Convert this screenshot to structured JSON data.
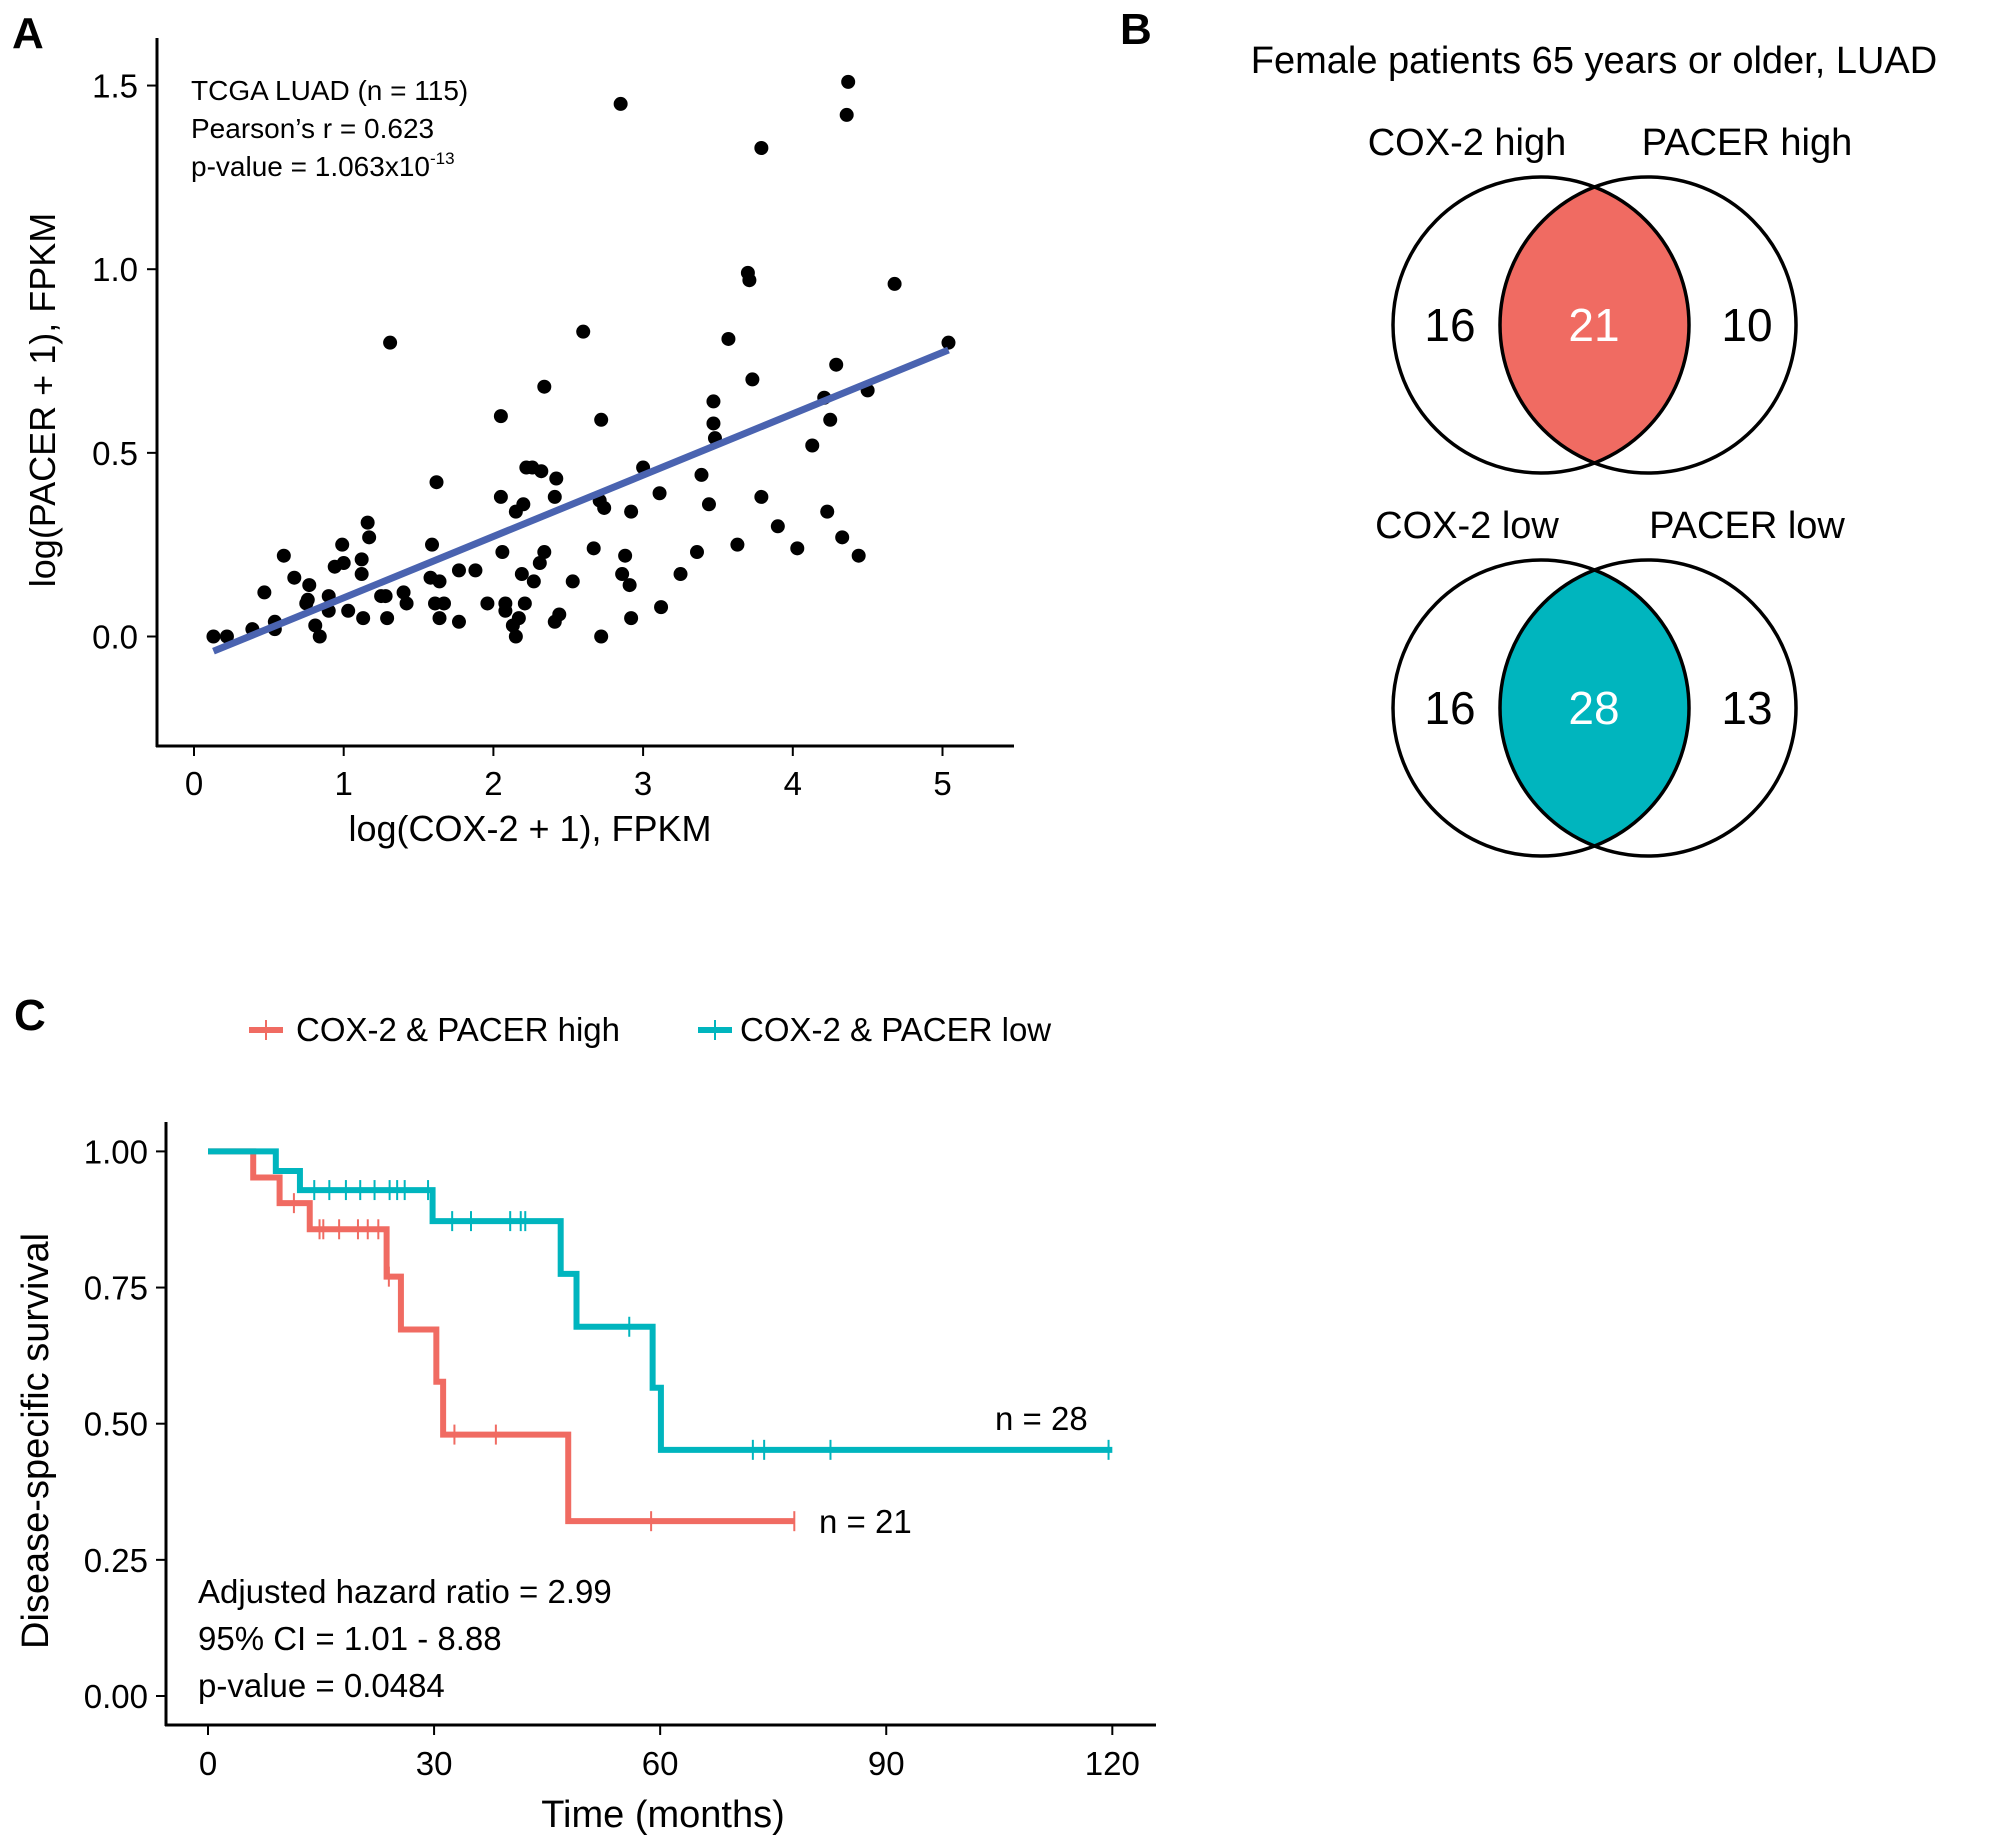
{
  "colors": {
    "point": "#000000",
    "fit_line": "#4a63b0",
    "high": "#f06b62",
    "low": "#00b5be",
    "axis": "#000000"
  },
  "chart_data": [
    {
      "panel": "A",
      "type": "scatter",
      "xlabel": "log(COX-2 + 1), FPKM",
      "ylabel": "log(PACER + 1), FPKM",
      "xlim": [
        -0.25,
        5.47
      ],
      "ylim": [
        -0.3,
        1.62
      ],
      "xticks": [
        "0",
        "1",
        "2",
        "3",
        "4",
        "5"
      ],
      "yticks": [
        "0.0",
        "0.5",
        "1.0",
        "1.5"
      ],
      "grid": false,
      "annotations": [
        "TCGA LUAD (n = 115)",
        "Pearson’s r = 0.623",
        "p-value = 1.063x10"
      ],
      "annotation_exponent": "-13",
      "fit_line": {
        "x": [
          0.13,
          5.04
        ],
        "y": [
          -0.04,
          0.78
        ]
      },
      "points": [
        [
          0.13,
          0.0
        ],
        [
          0.22,
          0.0
        ],
        [
          0.39,
          0.02
        ],
        [
          0.47,
          0.12
        ],
        [
          0.54,
          0.04
        ],
        [
          0.54,
          0.02
        ],
        [
          0.6,
          0.22
        ],
        [
          0.67,
          0.16
        ],
        [
          0.75,
          0.09
        ],
        [
          0.77,
          0.14
        ],
        [
          0.76,
          0.1
        ],
        [
          0.81,
          0.03
        ],
        [
          0.84,
          0.0
        ],
        [
          0.9,
          0.11
        ],
        [
          0.9,
          0.07
        ],
        [
          0.94,
          0.19
        ],
        [
          0.99,
          0.25
        ],
        [
          1.0,
          0.2
        ],
        [
          1.03,
          0.07
        ],
        [
          1.12,
          0.21
        ],
        [
          1.12,
          0.17
        ],
        [
          1.13,
          0.05
        ],
        [
          1.16,
          0.31
        ],
        [
          1.17,
          0.27
        ],
        [
          1.25,
          0.11
        ],
        [
          1.28,
          0.11
        ],
        [
          1.29,
          0.05
        ],
        [
          1.31,
          0.8
        ],
        [
          1.4,
          0.12
        ],
        [
          1.42,
          0.09
        ],
        [
          1.58,
          0.16
        ],
        [
          1.59,
          0.25
        ],
        [
          1.62,
          0.42
        ],
        [
          1.61,
          0.09
        ],
        [
          1.64,
          0.05
        ],
        [
          1.64,
          0.15
        ],
        [
          1.67,
          0.09
        ],
        [
          1.77,
          0.18
        ],
        [
          1.77,
          0.04
        ],
        [
          1.88,
          0.18
        ],
        [
          1.96,
          0.09
        ],
        [
          2.05,
          0.6
        ],
        [
          2.05,
          0.38
        ],
        [
          2.06,
          0.23
        ],
        [
          2.08,
          0.09
        ],
        [
          2.08,
          0.07
        ],
        [
          2.13,
          0.03
        ],
        [
          2.15,
          0.0
        ],
        [
          2.15,
          0.34
        ],
        [
          2.17,
          0.05
        ],
        [
          2.19,
          0.17
        ],
        [
          2.2,
          0.36
        ],
        [
          2.21,
          0.09
        ],
        [
          2.22,
          0.46
        ],
        [
          2.26,
          0.46
        ],
        [
          2.27,
          0.15
        ],
        [
          2.31,
          0.2
        ],
        [
          2.32,
          0.45
        ],
        [
          2.34,
          0.23
        ],
        [
          2.34,
          0.68
        ],
        [
          2.41,
          0.04
        ],
        [
          2.41,
          0.38
        ],
        [
          2.42,
          0.43
        ],
        [
          2.44,
          0.06
        ],
        [
          2.53,
          0.15
        ],
        [
          2.6,
          0.83
        ],
        [
          2.67,
          0.24
        ],
        [
          2.71,
          0.37
        ],
        [
          2.72,
          0.0
        ],
        [
          2.72,
          0.59
        ],
        [
          2.74,
          0.35
        ],
        [
          2.85,
          1.45
        ],
        [
          2.86,
          0.17
        ],
        [
          2.88,
          0.22
        ],
        [
          2.91,
          0.14
        ],
        [
          2.92,
          0.05
        ],
        [
          2.92,
          0.34
        ],
        [
          3.0,
          0.46
        ],
        [
          3.11,
          0.39
        ],
        [
          3.12,
          0.08
        ],
        [
          3.25,
          0.17
        ],
        [
          3.36,
          0.23
        ],
        [
          3.39,
          0.44
        ],
        [
          3.44,
          0.36
        ],
        [
          3.47,
          0.64
        ],
        [
          3.47,
          0.58
        ],
        [
          3.48,
          0.54
        ],
        [
          3.57,
          0.81
        ],
        [
          3.63,
          0.25
        ],
        [
          3.7,
          0.99
        ],
        [
          3.71,
          0.97
        ],
        [
          3.73,
          0.7
        ],
        [
          3.79,
          1.33
        ],
        [
          3.79,
          0.38
        ],
        [
          3.9,
          0.3
        ],
        [
          4.03,
          0.24
        ],
        [
          4.13,
          0.52
        ],
        [
          4.21,
          0.65
        ],
        [
          4.23,
          0.34
        ],
        [
          4.25,
          0.59
        ],
        [
          4.29,
          0.74
        ],
        [
          4.33,
          0.27
        ],
        [
          4.36,
          1.42
        ],
        [
          4.37,
          1.51
        ],
        [
          4.44,
          0.22
        ],
        [
          4.5,
          0.67
        ],
        [
          4.68,
          0.96
        ],
        [
          5.04,
          0.8
        ]
      ]
    },
    {
      "panel": "B",
      "type": "venn",
      "title": "Female patients 65 years or older, LUAD",
      "diagrams": [
        {
          "left_label": "COX-2 high",
          "right_label": "PACER high",
          "left_only": "16",
          "overlap": "21",
          "right_only": "10",
          "fill": "high"
        },
        {
          "left_label": "COX-2 low",
          "right_label": "PACER low",
          "left_only": "16",
          "overlap": "28",
          "right_only": "13",
          "fill": "low"
        }
      ]
    },
    {
      "panel": "C",
      "type": "line",
      "xlabel": "Time (months)",
      "ylabel": "Disease-specific survival",
      "xlim": [
        -4.5,
        125
      ],
      "ylim": [
        -0.05,
        1.07
      ],
      "xticks": [
        "0",
        "30",
        "60",
        "90",
        "120"
      ],
      "yticks": [
        "0.00",
        "0.25",
        "0.50",
        "0.75",
        "1.00"
      ],
      "grid": false,
      "legend_position": "top",
      "annotations": [
        "Adjusted hazard ratio = 2.99",
        "95% CI = 1.01 - 8.88",
        "p-value = 0.0484"
      ],
      "series": [
        {
          "name": "COX-2 & PACER high",
          "color": "high",
          "end_label": "n = 21",
          "end_time": 77.8,
          "steps": [
            [
              0,
              1.0
            ],
            [
              6,
              0.952
            ],
            [
              9.5,
              0.905
            ],
            [
              13.5,
              0.857
            ],
            [
              23.7,
              0.77
            ],
            [
              25.6,
              0.673
            ],
            [
              30.3,
              0.577
            ],
            [
              31.2,
              0.48
            ],
            [
              47.8,
              0.321
            ]
          ],
          "censored": [
            [
              11.4,
              0.905
            ],
            [
              14.8,
              0.857
            ],
            [
              15.3,
              0.857
            ],
            [
              17.4,
              0.857
            ],
            [
              19.9,
              0.857
            ],
            [
              21.2,
              0.857
            ],
            [
              22.6,
              0.857
            ],
            [
              24,
              0.77
            ],
            [
              32.7,
              0.48
            ],
            [
              38.2,
              0.48
            ],
            [
              58.8,
              0.321
            ],
            [
              77.8,
              0.321
            ]
          ]
        },
        {
          "name": "COX-2 & PACER low",
          "color": "low",
          "end_label": "n = 28",
          "end_time": 120,
          "steps": [
            [
              0,
              1.0
            ],
            [
              9,
              0.964
            ],
            [
              12.2,
              0.929
            ],
            [
              29.8,
              0.872
            ],
            [
              46.8,
              0.775
            ],
            [
              48.9,
              0.678
            ],
            [
              59,
              0.566
            ],
            [
              60.1,
              0.452
            ]
          ],
          "censored": [
            [
              14.1,
              0.929
            ],
            [
              16.1,
              0.929
            ],
            [
              18.3,
              0.929
            ],
            [
              20.2,
              0.929
            ],
            [
              22.1,
              0.929
            ],
            [
              24.1,
              0.929
            ],
            [
              25.1,
              0.929
            ],
            [
              26.1,
              0.929
            ],
            [
              29.2,
              0.929
            ],
            [
              32.4,
              0.872
            ],
            [
              34.9,
              0.872
            ],
            [
              40.1,
              0.872
            ],
            [
              41.5,
              0.872
            ],
            [
              42.1,
              0.872
            ],
            [
              55.9,
              0.678
            ],
            [
              72.3,
              0.452
            ],
            [
              73.8,
              0.452
            ],
            [
              82.6,
              0.452
            ],
            [
              119.5,
              0.452
            ]
          ]
        }
      ]
    }
  ],
  "panel_labels": [
    "A",
    "B",
    "C"
  ]
}
